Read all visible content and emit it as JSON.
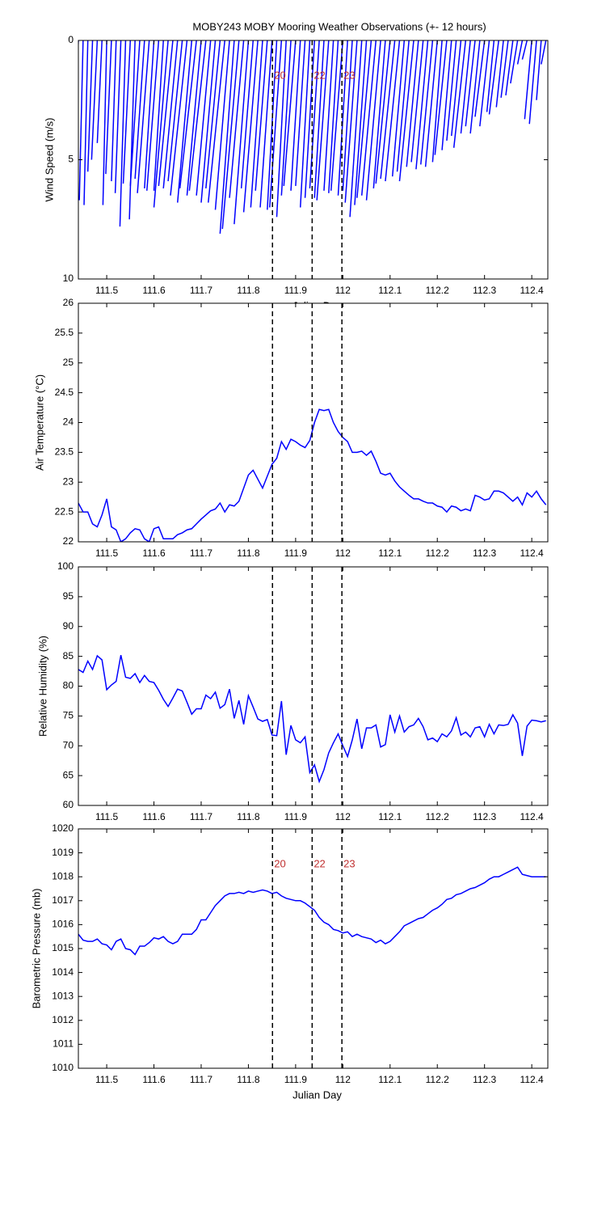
{
  "chart_data": [
    {
      "type": "stick",
      "title": "MOBY243 MOBY Mooring Weather Observations (+- 12 hours)",
      "ylabel": "Wind Speed (m/s)",
      "xlabel": "Julian Day",
      "color": "#0000ff",
      "xlim": [
        111.44,
        112.434
      ],
      "ylim": [
        10,
        0
      ],
      "xticks": [
        111.5,
        111.6,
        111.7,
        111.8,
        111.9,
        112,
        112.1,
        112.2,
        112.3,
        112.4
      ],
      "yticks": [
        0,
        5,
        10
      ],
      "vlines": [
        111.851,
        111.935,
        111.998
      ],
      "vline_labels": [
        "20",
        "22",
        "23"
      ],
      "x": [
        111.44,
        111.45,
        111.46,
        111.47,
        111.48,
        111.49,
        111.5,
        111.51,
        111.52,
        111.53,
        111.54,
        111.55,
        111.56,
        111.57,
        111.58,
        111.59,
        111.6,
        111.61,
        111.62,
        111.63,
        111.64,
        111.65,
        111.66,
        111.67,
        111.68,
        111.69,
        111.7,
        111.71,
        111.72,
        111.73,
        111.74,
        111.75,
        111.76,
        111.77,
        111.78,
        111.79,
        111.8,
        111.81,
        111.82,
        111.83,
        111.84,
        111.85,
        111.86,
        111.87,
        111.88,
        111.89,
        111.9,
        111.91,
        111.92,
        111.93,
        111.94,
        111.95,
        111.96,
        111.97,
        111.98,
        111.99,
        112,
        112.01,
        112.02,
        112.03,
        112.04,
        112.05,
        112.06,
        112.07,
        112.08,
        112.09,
        112.1,
        112.11,
        112.12,
        112.13,
        112.14,
        112.15,
        112.16,
        112.17,
        112.18,
        112.19,
        112.2,
        112.21,
        112.22,
        112.23,
        112.24,
        112.25,
        112.26,
        112.27,
        112.28,
        112.29,
        112.3,
        112.31,
        112.32,
        112.33,
        112.34,
        112.35,
        112.36,
        112.37,
        112.38,
        112.39,
        112.4,
        112.41,
        112.42,
        112.43
      ],
      "x_offset": [
        -0.01,
        -0.008,
        -0.008,
        -0.01,
        -0.012,
        -0.01,
        -0.008,
        -0.012,
        -0.01,
        -0.012,
        -0.012,
        -0.015,
        -0.012,
        -0.02,
        -0.02,
        -0.025,
        -0.02,
        -0.025,
        -0.02,
        -0.03,
        -0.03,
        -0.03,
        -0.03,
        -0.035,
        -0.03,
        -0.035,
        -0.03,
        -0.035,
        -0.03,
        -0.03,
        -0.03,
        -0.035,
        -0.03,
        -0.03,
        -0.035,
        -0.03,
        -0.03,
        -0.025,
        -0.03,
        -0.025,
        -0.025,
        -0.025,
        -0.02,
        -0.025,
        -0.02,
        -0.02,
        -0.025,
        -0.02,
        -0.02,
        -0.02,
        -0.02,
        -0.02,
        -0.02,
        -0.025,
        -0.02,
        -0.02,
        -0.025,
        -0.02,
        -0.02,
        -0.025,
        -0.025,
        -0.025,
        -0.03,
        -0.03,
        -0.03,
        -0.025,
        -0.03,
        -0.03,
        -0.03,
        -0.025,
        -0.025,
        -0.03,
        -0.025,
        -0.025,
        -0.025,
        -0.025,
        -0.025,
        -0.02,
        -0.025,
        -0.02,
        -0.02,
        -0.02,
        -0.025,
        -0.02,
        -0.02,
        -0.02,
        -0.02,
        -0.02,
        -0.015,
        -0.02,
        -0.015,
        -0.015,
        -0.015,
        -0.015,
        -0.01,
        -0.01,
        -0.015,
        -0.015,
        -0.01,
        -0.01
      ],
      "values": [
        4.6,
        6.7,
        6.9,
        5.5,
        5.0,
        4.3,
        6.9,
        5.6,
        5.9,
        6.4,
        7.8,
        6.0,
        7.5,
        6.1,
        5.8,
        6.4,
        6.2,
        6.3,
        6.3,
        7.0,
        6.1,
        6.2,
        5.9,
        6.5,
        6.8,
        6.2,
        6.5,
        6.3,
        6.5,
        6.8,
        6.2,
        6.8,
        7.1,
        8.1,
        7.9,
        6.6,
        7.7,
        6.2,
        7.2,
        7.0,
        6.3,
        7.0,
        7.1,
        7.0,
        7.4,
        6.5,
        6.1,
        6.3,
        6.1,
        7.0,
        6.6,
        6.2,
        6.6,
        6.7,
        6.3,
        6.4,
        6.3,
        6.5,
        6.3,
        6.8,
        7.4,
        6.9,
        6.6,
        6.5,
        6.7,
        6.2,
        6.0,
        5.8,
        5.9,
        5.7,
        5.5,
        5.9,
        5.3,
        5.1,
        5.4,
        5.2,
        5.3,
        5.1,
        4.8,
        4.6,
        4.2,
        4.0,
        4.5,
        3.9,
        3.6,
        3.9,
        3.2,
        3.6,
        3.0,
        3.1,
        2.8,
        2.4,
        2.3,
        1.8,
        1.0,
        0.8,
        3.3,
        3.5,
        2.5,
        1.0
      ]
    },
    {
      "type": "line",
      "ylabel": "Air Temperature (°C)",
      "color": "#0000ff",
      "xlim": [
        111.44,
        112.434
      ],
      "ylim": [
        22,
        26
      ],
      "xticks": [
        111.5,
        111.6,
        111.7,
        111.8,
        111.9,
        112,
        112.1,
        112.2,
        112.3,
        112.4
      ],
      "yticks": [
        22,
        22.5,
        23,
        23.5,
        24,
        24.5,
        25,
        25.5,
        26
      ],
      "vlines": [
        111.851,
        111.935,
        111.998
      ],
      "x": [
        111.44,
        111.45,
        111.46,
        111.47,
        111.48,
        111.49,
        111.5,
        111.51,
        111.52,
        111.53,
        111.54,
        111.55,
        111.56,
        111.57,
        111.58,
        111.59,
        111.6,
        111.61,
        111.62,
        111.63,
        111.64,
        111.65,
        111.66,
        111.67,
        111.68,
        111.69,
        111.7,
        111.71,
        111.72,
        111.73,
        111.74,
        111.75,
        111.76,
        111.77,
        111.78,
        111.79,
        111.8,
        111.81,
        111.82,
        111.83,
        111.84,
        111.85,
        111.86,
        111.87,
        111.88,
        111.89,
        111.9,
        111.91,
        111.92,
        111.93,
        111.94,
        111.95,
        111.96,
        111.97,
        111.98,
        111.99,
        112,
        112.01,
        112.02,
        112.03,
        112.04,
        112.05,
        112.06,
        112.07,
        112.08,
        112.09,
        112.1,
        112.11,
        112.12,
        112.13,
        112.14,
        112.15,
        112.16,
        112.17,
        112.18,
        112.19,
        112.2,
        112.21,
        112.22,
        112.23,
        112.24,
        112.25,
        112.26,
        112.27,
        112.28,
        112.29,
        112.3,
        112.31,
        112.32,
        112.33,
        112.34,
        112.35,
        112.36,
        112.37,
        112.38,
        112.39,
        112.4,
        112.41,
        112.42,
        112.43
      ],
      "values": [
        22.65,
        22.5,
        22.5,
        22.3,
        22.25,
        22.45,
        22.72,
        22.25,
        22.2,
        22.0,
        22.05,
        22.15,
        22.22,
        22.2,
        22.05,
        22.0,
        22.22,
        22.25,
        22.05,
        22.05,
        22.05,
        22.12,
        22.15,
        22.2,
        22.22,
        22.3,
        22.38,
        22.45,
        22.52,
        22.55,
        22.65,
        22.5,
        22.62,
        22.6,
        22.68,
        22.9,
        23.12,
        23.2,
        23.05,
        22.9,
        23.1,
        23.3,
        23.4,
        23.68,
        23.55,
        23.72,
        23.68,
        23.62,
        23.58,
        23.7,
        24.0,
        24.22,
        24.2,
        24.22,
        24.0,
        23.85,
        23.75,
        23.68,
        23.5,
        23.5,
        23.52,
        23.45,
        23.52,
        23.35,
        23.15,
        23.12,
        23.15,
        23.02,
        22.92,
        22.85,
        22.78,
        22.72,
        22.72,
        22.68,
        22.65,
        22.65,
        22.6,
        22.58,
        22.5,
        22.6,
        22.58,
        22.52,
        22.55,
        22.52,
        22.78,
        22.75,
        22.7,
        22.72,
        22.85,
        22.85,
        22.82,
        22.75,
        22.68,
        22.75,
        22.62,
        22.82,
        22.75,
        22.85,
        22.72,
        22.62
      ]
    },
    {
      "type": "line",
      "ylabel": "Relative Humidity (%)",
      "color": "#0000ff",
      "xlim": [
        111.44,
        112.434
      ],
      "ylim": [
        60,
        100
      ],
      "xticks": [
        111.5,
        111.6,
        111.7,
        111.8,
        111.9,
        112,
        112.1,
        112.2,
        112.3,
        112.4
      ],
      "yticks": [
        60,
        65,
        70,
        75,
        80,
        85,
        90,
        95,
        100
      ],
      "vlines": [
        111.851,
        111.935,
        111.998
      ],
      "x": [
        111.44,
        111.45,
        111.46,
        111.47,
        111.48,
        111.49,
        111.5,
        111.51,
        111.52,
        111.53,
        111.54,
        111.55,
        111.56,
        111.57,
        111.58,
        111.59,
        111.6,
        111.61,
        111.62,
        111.63,
        111.64,
        111.65,
        111.66,
        111.67,
        111.68,
        111.69,
        111.7,
        111.71,
        111.72,
        111.73,
        111.74,
        111.75,
        111.76,
        111.77,
        111.78,
        111.79,
        111.8,
        111.81,
        111.82,
        111.83,
        111.84,
        111.85,
        111.86,
        111.87,
        111.88,
        111.89,
        111.9,
        111.91,
        111.92,
        111.93,
        111.94,
        111.95,
        111.96,
        111.97,
        111.98,
        111.99,
        112,
        112.01,
        112.02,
        112.03,
        112.04,
        112.05,
        112.06,
        112.07,
        112.08,
        112.09,
        112.1,
        112.11,
        112.12,
        112.13,
        112.14,
        112.15,
        112.16,
        112.17,
        112.18,
        112.19,
        112.2,
        112.21,
        112.22,
        112.23,
        112.24,
        112.25,
        112.26,
        112.27,
        112.28,
        112.29,
        112.3,
        112.31,
        112.32,
        112.33,
        112.34,
        112.35,
        112.36,
        112.37,
        112.38,
        112.39,
        112.4,
        112.41,
        112.42,
        112.43
      ],
      "values": [
        82.8,
        82.3,
        84.2,
        82.8,
        85.1,
        84.4,
        79.4,
        80.2,
        80.8,
        85.2,
        81.5,
        81.3,
        82.1,
        80.6,
        81.8,
        80.8,
        80.6,
        79.3,
        77.8,
        76.6,
        78.0,
        79.5,
        79.2,
        77.3,
        75.3,
        76.2,
        76.2,
        78.5,
        77.9,
        79.0,
        76.3,
        76.9,
        79.5,
        74.6,
        77.6,
        73.6,
        78.4,
        76.5,
        74.5,
        74.1,
        74.4,
        71.8,
        71.7,
        77.5,
        68.5,
        73.4,
        71.0,
        70.5,
        71.5,
        65.5,
        66.8,
        64.0,
        66.0,
        68.8,
        70.5,
        72.0,
        70.0,
        68.2,
        71.0,
        74.5,
        69.5,
        73.0,
        73.0,
        73.5,
        69.8,
        70.2,
        75.2,
        72.3,
        75.0,
        72.3,
        73.2,
        73.5,
        74.6,
        73.2,
        71.0,
        71.3,
        70.7,
        72.0,
        71.5,
        72.5,
        74.7,
        71.8,
        72.3,
        71.5,
        73.0,
        73.2,
        71.5,
        73.6,
        72.0,
        73.5,
        73.4,
        73.6,
        75.2,
        73.8,
        68.3,
        73.3,
        74.3,
        74.2,
        74.0,
        74.2
      ]
    },
    {
      "type": "line",
      "ylabel": "Barometric Pressure (mb)",
      "xlabel": "Julian Day",
      "color": "#0000ff",
      "xlim": [
        111.44,
        112.434
      ],
      "ylim": [
        1010,
        1020
      ],
      "xticks": [
        111.5,
        111.6,
        111.7,
        111.8,
        111.9,
        112,
        112.1,
        112.2,
        112.3,
        112.4
      ],
      "yticks": [
        1010,
        1011,
        1012,
        1013,
        1014,
        1015,
        1016,
        1017,
        1018,
        1019,
        1020
      ],
      "vlines": [
        111.851,
        111.935,
        111.998
      ],
      "vline_labels": [
        "20",
        "22",
        "23"
      ],
      "x": [
        111.44,
        111.45,
        111.46,
        111.47,
        111.48,
        111.49,
        111.5,
        111.51,
        111.52,
        111.53,
        111.54,
        111.55,
        111.56,
        111.57,
        111.58,
        111.59,
        111.6,
        111.61,
        111.62,
        111.63,
        111.64,
        111.65,
        111.66,
        111.67,
        111.68,
        111.69,
        111.7,
        111.71,
        111.72,
        111.73,
        111.74,
        111.75,
        111.76,
        111.77,
        111.78,
        111.79,
        111.8,
        111.81,
        111.82,
        111.83,
        111.84,
        111.85,
        111.86,
        111.87,
        111.88,
        111.89,
        111.9,
        111.91,
        111.92,
        111.93,
        111.94,
        111.95,
        111.96,
        111.97,
        111.98,
        111.99,
        112,
        112.01,
        112.02,
        112.03,
        112.04,
        112.05,
        112.06,
        112.07,
        112.08,
        112.09,
        112.1,
        112.11,
        112.12,
        112.13,
        112.14,
        112.15,
        112.16,
        112.17,
        112.18,
        112.19,
        112.2,
        112.21,
        112.22,
        112.23,
        112.24,
        112.25,
        112.26,
        112.27,
        112.28,
        112.29,
        112.3,
        112.31,
        112.32,
        112.33,
        112.34,
        112.35,
        112.36,
        112.37,
        112.38,
        112.39,
        112.4,
        112.41,
        112.42,
        112.43
      ],
      "values": [
        1015.6,
        1015.35,
        1015.3,
        1015.3,
        1015.4,
        1015.2,
        1015.15,
        1014.95,
        1015.3,
        1015.4,
        1015.0,
        1014.95,
        1014.75,
        1015.1,
        1015.1,
        1015.25,
        1015.45,
        1015.4,
        1015.5,
        1015.3,
        1015.2,
        1015.3,
        1015.6,
        1015.6,
        1015.6,
        1015.8,
        1016.2,
        1016.2,
        1016.5,
        1016.8,
        1017.0,
        1017.2,
        1017.3,
        1017.3,
        1017.35,
        1017.3,
        1017.4,
        1017.35,
        1017.4,
        1017.45,
        1017.4,
        1017.3,
        1017.35,
        1017.2,
        1017.1,
        1017.05,
        1017.0,
        1017.0,
        1016.9,
        1016.75,
        1016.6,
        1016.3,
        1016.1,
        1016.0,
        1015.8,
        1015.75,
        1015.65,
        1015.7,
        1015.5,
        1015.6,
        1015.5,
        1015.45,
        1015.4,
        1015.25,
        1015.35,
        1015.2,
        1015.3,
        1015.5,
        1015.7,
        1015.95,
        1016.05,
        1016.15,
        1016.25,
        1016.3,
        1016.45,
        1016.6,
        1016.7,
        1016.85,
        1017.05,
        1017.1,
        1017.25,
        1017.3,
        1017.4,
        1017.5,
        1017.55,
        1017.65,
        1017.75,
        1017.9,
        1018.0,
        1018.0,
        1018.1,
        1018.2,
        1018.3,
        1018.4,
        1018.1,
        1018.05,
        1018.0,
        1018.0,
        1018.0,
        1018.0
      ]
    }
  ]
}
